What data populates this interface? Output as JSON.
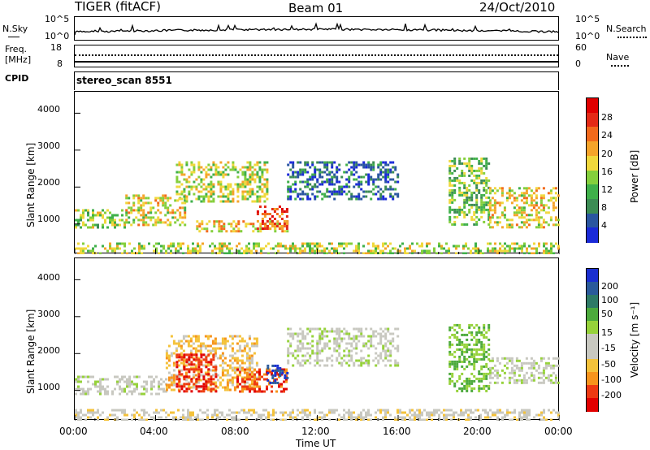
{
  "header": {
    "radar": "TIGER (fitACF)",
    "beam": "Beam 01",
    "date": "24/Oct/2010",
    "cpid_label": "CPID",
    "cpid_value": "stereo_scan 8551"
  },
  "noise_panel": {
    "left_label": "N.Sky",
    "left_ticks": [
      "10^5",
      "10^0"
    ],
    "right_label": "N.Search",
    "right_ticks": [
      "10^5",
      "10^0"
    ]
  },
  "freq_panel": {
    "left_label_top": "Freq.",
    "left_label_bottom": "[MHz]",
    "left_ticks": [
      "18",
      "8"
    ],
    "right_label": "Nave",
    "right_ticks": [
      "60",
      "0"
    ]
  },
  "colors": {
    "power_scale": [
      "#1a2ad8",
      "#2a56a0",
      "#3c8c54",
      "#3fb04a",
      "#84cf3c",
      "#f0d83c",
      "#f5a42a",
      "#f26a1c",
      "#e42a16",
      "#e00000"
    ],
    "velocity_scale": [
      "#e20000",
      "#ee3a12",
      "#f7941c",
      "#f4c23a",
      "#c8c8c0",
      "#c8c8c0",
      "#96d23a",
      "#4caa3c",
      "#2e7a66",
      "#2a5a9a",
      "#1a2fd0"
    ]
  },
  "chart_data": [
    {
      "type": "heatmap",
      "title": "",
      "xlabel": "Time UT",
      "ylabel": "Slant Range [km]",
      "x_ticks": [
        "00:00",
        "04:00",
        "08:00",
        "12:00",
        "16:00",
        "20:00",
        "00:00"
      ],
      "x_range_hours": [
        0,
        24
      ],
      "y_ticks": [
        "1000",
        "2000",
        "3000",
        "4000"
      ],
      "ylim": [
        180,
        4580
      ],
      "colorbar_label": "Power [dB]",
      "colorbar_ticks": [
        "4",
        "8",
        "12",
        "16",
        "20",
        "24",
        "28"
      ],
      "colorbar_range": [
        0,
        30
      ],
      "echo_regions": [
        {
          "t": [
            0.0,
            2.5
          ],
          "r": [
            900,
            1400
          ],
          "level": 0.45
        },
        {
          "t": [
            2.5,
            5.5
          ],
          "r": [
            1000,
            1800
          ],
          "level": 0.55
        },
        {
          "t": [
            5.0,
            9.5
          ],
          "r": [
            1600,
            2700
          ],
          "level": 0.5
        },
        {
          "t": [
            6.0,
            10.5
          ],
          "r": [
            800,
            1100
          ],
          "level": 0.6
        },
        {
          "t": [
            9.0,
            10.5
          ],
          "r": [
            900,
            1500
          ],
          "level": 0.8
        },
        {
          "t": [
            10.5,
            16.0
          ],
          "r": [
            1700,
            2700
          ],
          "level": 0.15
        },
        {
          "t": [
            18.5,
            20.5
          ],
          "r": [
            1000,
            2800
          ],
          "level": 0.4
        },
        {
          "t": [
            20.5,
            24.0
          ],
          "r": [
            900,
            2000
          ],
          "level": 0.55
        },
        {
          "t": [
            0.0,
            24.0
          ],
          "r": [
            200,
            500
          ],
          "level": 0.5
        }
      ]
    },
    {
      "type": "heatmap",
      "title": "",
      "xlabel": "Time UT",
      "ylabel": "Slant Range [km]",
      "x_ticks": [
        "00:00",
        "04:00",
        "08:00",
        "12:00",
        "16:00",
        "20:00",
        "00:00"
      ],
      "x_range_hours": [
        0,
        24
      ],
      "y_ticks": [
        "1000",
        "2000",
        "3000",
        "4000"
      ],
      "ylim": [
        180,
        4580
      ],
      "colorbar_label": "Velocity [m s⁻¹]",
      "colorbar_ticks": [
        "200",
        "100",
        "50",
        "15",
        "-15",
        "-50",
        "-100",
        "-200"
      ],
      "colorbar_range": [
        -250,
        250
      ],
      "echo_regions": [
        {
          "t": [
            0.0,
            4.5
          ],
          "r": [
            900,
            1400
          ],
          "level": 0.0
        },
        {
          "t": [
            4.5,
            9.0
          ],
          "r": [
            1000,
            2500
          ],
          "level": -0.4
        },
        {
          "t": [
            5.0,
            7.0
          ],
          "r": [
            1000,
            2000
          ],
          "level": -0.9
        },
        {
          "t": [
            8.0,
            10.5
          ],
          "r": [
            1000,
            1600
          ],
          "level": -0.8
        },
        {
          "t": [
            9.5,
            10.5
          ],
          "r": [
            1200,
            1700
          ],
          "level": 0.9
        },
        {
          "t": [
            10.5,
            16.0
          ],
          "r": [
            1700,
            2700
          ],
          "level": 0.0
        },
        {
          "t": [
            18.5,
            20.5
          ],
          "r": [
            1000,
            2800
          ],
          "level": 0.3
        },
        {
          "t": [
            20.5,
            24.0
          ],
          "r": [
            1200,
            1900
          ],
          "level": 0.0
        },
        {
          "t": [
            0.0,
            24.0
          ],
          "r": [
            200,
            500
          ],
          "level": -0.2
        }
      ]
    }
  ]
}
